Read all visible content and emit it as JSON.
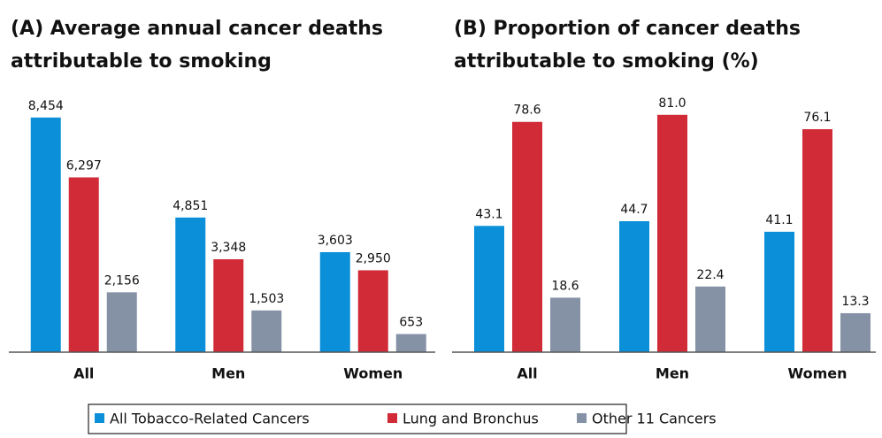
{
  "chart_data": [
    {
      "type": "bar",
      "title": "(A) Average annual cancer deaths attributable to smoking",
      "categories": [
        "All",
        "Men",
        "Women"
      ],
      "ylim": [
        0,
        9500
      ],
      "series": [
        {
          "name": "All Tobacco-Related Cancers",
          "color": "#0b8fd9",
          "values": [
            8454,
            4851,
            3603
          ],
          "value_labels": [
            "8,454",
            "4,851",
            "3,603"
          ]
        },
        {
          "name": "Lung and Bronchus",
          "color": "#d02b36",
          "values": [
            6297,
            3348,
            2950
          ],
          "value_labels": [
            "6,297",
            "3,348",
            "2,950"
          ]
        },
        {
          "name": "Other 11 Cancers",
          "color": "#8592a6",
          "values": [
            2156,
            1503,
            653
          ],
          "value_labels": [
            "2,156",
            "1,503",
            "653"
          ]
        }
      ]
    },
    {
      "type": "bar",
      "title": "(B) Proportion of cancer deaths attributable to smoking (%)",
      "categories": [
        "All",
        "Men",
        "Women"
      ],
      "ylim": [
        0,
        90
      ],
      "series": [
        {
          "color": "#0b8fd9",
          "values": [
            43.1,
            44.7,
            41.1
          ],
          "value_labels": [
            "43.1",
            "44.7",
            "41.1"
          ]
        },
        {
          "color": "#d02b36",
          "values": [
            78.6,
            81.0,
            76.1
          ],
          "value_labels": [
            "78.6",
            "81.0",
            "76.1"
          ]
        },
        {
          "color": "#8592a6",
          "values": [
            18.6,
            22.4,
            13.3
          ],
          "value_labels": [
            "18.6",
            "22.4",
            "13.3"
          ]
        }
      ]
    }
  ]
}
